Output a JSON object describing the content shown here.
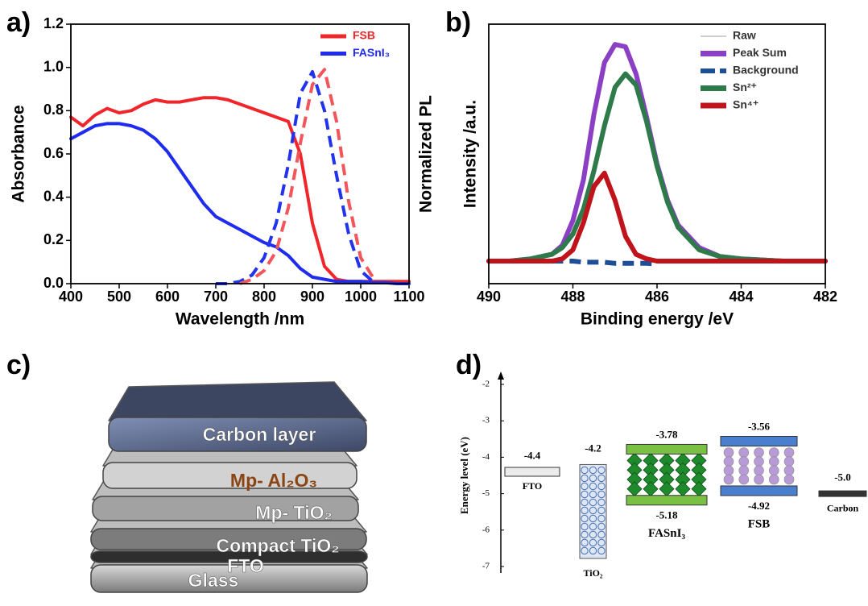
{
  "chart_data": [
    {
      "type": "line",
      "label": "a)",
      "x": [
        400,
        425,
        450,
        475,
        500,
        525,
        550,
        575,
        600,
        625,
        650,
        675,
        700,
        725,
        750,
        775,
        800,
        825,
        850,
        875,
        900,
        925,
        950,
        975,
        1000,
        1025,
        1050,
        1075,
        1100
      ],
      "xlim": [
        400,
        1100
      ],
      "xticks": [
        400,
        500,
        600,
        700,
        800,
        900,
        1000,
        1100
      ],
      "ylim": [
        0,
        1.2
      ],
      "yticks": [
        {
          "value": 0,
          "label": "0.0"
        },
        0.2,
        0.4,
        0.6,
        0.8,
        {
          "value": 1,
          "label": "1.0"
        },
        1.2
      ],
      "y2lim": [
        0,
        1.2
      ],
      "xlabel": "Wavelength /nm",
      "ylabel": "Absorbance",
      "y2label": "Normalized PL",
      "legend": "upper right",
      "series": [
        {
          "name": "FSB",
          "color": "#f0262b",
          "values": [
            0.77,
            0.73,
            0.78,
            0.81,
            0.79,
            0.8,
            0.83,
            0.85,
            0.84,
            0.84,
            0.85,
            0.86,
            0.86,
            0.85,
            0.83,
            0.81,
            0.79,
            0.77,
            0.75,
            0.6,
            0.28,
            0.08,
            0.02,
            0.01,
            0.01,
            0.01,
            0.01,
            0.01,
            0.01
          ]
        },
        {
          "name": "FASnI₃",
          "color": "#1f2cf0",
          "values": [
            0.67,
            0.7,
            0.73,
            0.74,
            0.74,
            0.73,
            0.71,
            0.67,
            0.61,
            0.53,
            0.45,
            0.37,
            0.31,
            0.28,
            0.25,
            0.22,
            0.19,
            0.17,
            0.13,
            0.07,
            0.03,
            0.02,
            0.01,
            0.01,
            0.01,
            0.005,
            0.005,
            0,
            0
          ]
        },
        {
          "color": "#2233ee",
          "linestyle": "dashed",
          "axis": "y2",
          "values": [
            null,
            null,
            null,
            null,
            null,
            null,
            null,
            null,
            null,
            null,
            null,
            null,
            0,
            0,
            0.01,
            0.04,
            0.12,
            0.28,
            0.55,
            0.88,
            0.98,
            0.8,
            0.5,
            0.23,
            0.06,
            0.01,
            null,
            null,
            null
          ]
        },
        {
          "color": "#f2555a",
          "linestyle": "dashed",
          "axis": "y2",
          "values": [
            null,
            null,
            null,
            null,
            null,
            null,
            null,
            null,
            null,
            null,
            null,
            null,
            null,
            null,
            0,
            0.02,
            0.06,
            0.15,
            0.35,
            0.65,
            0.92,
            0.99,
            0.75,
            0.38,
            0.12,
            0.03,
            null,
            null,
            null
          ]
        }
      ]
    },
    {
      "type": "line",
      "label": "b)",
      "x": [
        490,
        489.5,
        489,
        488.5,
        488.25,
        488,
        487.75,
        487.5,
        487.25,
        487,
        486.75,
        486.5,
        486.25,
        486,
        485.75,
        485.5,
        485,
        484.5,
        484,
        483,
        482
      ],
      "xlim": [
        490,
        482
      ],
      "xticks": [
        490,
        488,
        486,
        484,
        482
      ],
      "ylim": [
        0,
        1.15
      ],
      "xlabel": "Binding energy /eV",
      "ylabel": "Intensity /a.u.",
      "legend": "upper right",
      "series": [
        {
          "name": "Raw",
          "color": "#bdbdbd",
          "values": [
            0.1,
            0.1,
            0.11,
            0.13,
            0.17,
            0.28,
            0.46,
            0.75,
            0.98,
            1.06,
            1.05,
            0.93,
            0.74,
            0.53,
            0.37,
            0.26,
            0.16,
            0.12,
            0.11,
            0.1,
            0.1
          ]
        },
        {
          "name": "Peak Sum",
          "color": "#8a3fc4",
          "values": [
            0.1,
            0.1,
            0.11,
            0.13,
            0.17,
            0.28,
            0.46,
            0.75,
            0.98,
            1.06,
            1.05,
            0.93,
            0.74,
            0.53,
            0.37,
            0.26,
            0.16,
            0.12,
            0.11,
            0.1,
            0.1
          ]
        },
        {
          "name": "Background",
          "color": "#1f4e99",
          "linestyle": "dashed",
          "values": [
            null,
            null,
            null,
            0.1,
            0.1,
            0.1,
            0.095,
            0.095,
            0.095,
            0.09,
            0.09,
            0.09,
            0.09,
            0.088,
            null,
            null,
            null,
            null,
            null,
            null,
            null
          ]
        },
        {
          "name": "Sn²⁺",
          "color": "#2e7a4a",
          "values": [
            0.1,
            0.1,
            0.11,
            0.13,
            0.16,
            0.22,
            0.33,
            0.5,
            0.7,
            0.87,
            0.93,
            0.88,
            0.72,
            0.52,
            0.36,
            0.25,
            0.15,
            0.12,
            0.11,
            0.1,
            0.1
          ]
        },
        {
          "name": "Sn⁴⁺",
          "color": "#c0141c",
          "values": [
            0.1,
            0.1,
            0.1,
            0.1,
            0.11,
            0.15,
            0.27,
            0.43,
            0.49,
            0.37,
            0.21,
            0.13,
            0.11,
            0.1,
            0.1,
            0.1,
            0.1,
            0.1,
            0.1,
            0.1,
            0.1
          ]
        }
      ]
    },
    {
      "type": "energy-level",
      "label": "d)",
      "ylabel": "Energy level (eV)",
      "ylim": [
        -7,
        -2
      ],
      "yticks": [
        -2,
        -3,
        -4,
        -5,
        -6,
        -7
      ],
      "items": [
        {
          "name": "FTO",
          "values": [
            -4.4
          ],
          "value_labels": [
            "-4.4"
          ],
          "color": "#ececec"
        },
        {
          "name": "TiO₂",
          "values": [
            -4.2
          ],
          "value_labels": [
            "-4.2"
          ],
          "color": "#dde6f5"
        },
        {
          "name": "FASnI₃",
          "values": [
            -3.78,
            -5.18
          ],
          "value_labels": [
            "-3.78",
            "-5.18"
          ],
          "color": "#7ac143"
        },
        {
          "name": "FSB",
          "values": [
            -3.56,
            -4.92
          ],
          "value_labels": [
            "-3.56",
            "-4.92"
          ],
          "color": "#4a7fd0"
        },
        {
          "name": "Carbon",
          "values": [
            -5.0
          ],
          "value_labels": [
            "-5.0"
          ],
          "color": "#333333"
        }
      ]
    }
  ],
  "diagram": {
    "label": "c)",
    "layers": [
      "Glass",
      "FTO",
      "Compact TiO₂",
      "Mp- TiO₂",
      "Mp- Al₂O₃",
      "Carbon layer"
    ]
  }
}
